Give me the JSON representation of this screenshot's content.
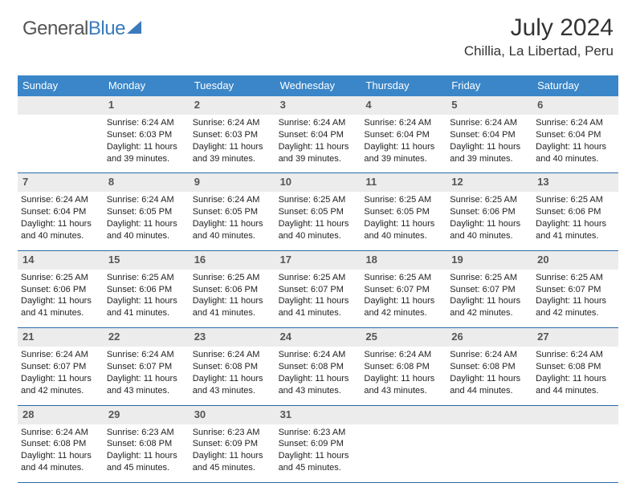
{
  "logo": {
    "part1": "General",
    "part2": "Blue"
  },
  "heading": {
    "title": "July 2024",
    "location": "Chillia, La Libertad, Peru"
  },
  "colors": {
    "header_bg": "#3a86c8",
    "header_text": "#ffffff",
    "daynum_bg": "#ececec",
    "week_border": "#2a6aa8",
    "logo_blue": "#3a7abd"
  },
  "weekday_labels": [
    "Sunday",
    "Monday",
    "Tuesday",
    "Wednesday",
    "Thursday",
    "Friday",
    "Saturday"
  ],
  "weeks": [
    {
      "daynums": [
        "",
        "1",
        "2",
        "3",
        "4",
        "5",
        "6"
      ],
      "cells": [
        {
          "sunrise": "",
          "sunset": "",
          "daylight": ""
        },
        {
          "sunrise": "Sunrise: 6:24 AM",
          "sunset": "Sunset: 6:03 PM",
          "daylight": "Daylight: 11 hours and 39 minutes."
        },
        {
          "sunrise": "Sunrise: 6:24 AM",
          "sunset": "Sunset: 6:03 PM",
          "daylight": "Daylight: 11 hours and 39 minutes."
        },
        {
          "sunrise": "Sunrise: 6:24 AM",
          "sunset": "Sunset: 6:04 PM",
          "daylight": "Daylight: 11 hours and 39 minutes."
        },
        {
          "sunrise": "Sunrise: 6:24 AM",
          "sunset": "Sunset: 6:04 PM",
          "daylight": "Daylight: 11 hours and 39 minutes."
        },
        {
          "sunrise": "Sunrise: 6:24 AM",
          "sunset": "Sunset: 6:04 PM",
          "daylight": "Daylight: 11 hours and 39 minutes."
        },
        {
          "sunrise": "Sunrise: 6:24 AM",
          "sunset": "Sunset: 6:04 PM",
          "daylight": "Daylight: 11 hours and 40 minutes."
        }
      ]
    },
    {
      "daynums": [
        "7",
        "8",
        "9",
        "10",
        "11",
        "12",
        "13"
      ],
      "cells": [
        {
          "sunrise": "Sunrise: 6:24 AM",
          "sunset": "Sunset: 6:04 PM",
          "daylight": "Daylight: 11 hours and 40 minutes."
        },
        {
          "sunrise": "Sunrise: 6:24 AM",
          "sunset": "Sunset: 6:05 PM",
          "daylight": "Daylight: 11 hours and 40 minutes."
        },
        {
          "sunrise": "Sunrise: 6:24 AM",
          "sunset": "Sunset: 6:05 PM",
          "daylight": "Daylight: 11 hours and 40 minutes."
        },
        {
          "sunrise": "Sunrise: 6:25 AM",
          "sunset": "Sunset: 6:05 PM",
          "daylight": "Daylight: 11 hours and 40 minutes."
        },
        {
          "sunrise": "Sunrise: 6:25 AM",
          "sunset": "Sunset: 6:05 PM",
          "daylight": "Daylight: 11 hours and 40 minutes."
        },
        {
          "sunrise": "Sunrise: 6:25 AM",
          "sunset": "Sunset: 6:06 PM",
          "daylight": "Daylight: 11 hours and 40 minutes."
        },
        {
          "sunrise": "Sunrise: 6:25 AM",
          "sunset": "Sunset: 6:06 PM",
          "daylight": "Daylight: 11 hours and 41 minutes."
        }
      ]
    },
    {
      "daynums": [
        "14",
        "15",
        "16",
        "17",
        "18",
        "19",
        "20"
      ],
      "cells": [
        {
          "sunrise": "Sunrise: 6:25 AM",
          "sunset": "Sunset: 6:06 PM",
          "daylight": "Daylight: 11 hours and 41 minutes."
        },
        {
          "sunrise": "Sunrise: 6:25 AM",
          "sunset": "Sunset: 6:06 PM",
          "daylight": "Daylight: 11 hours and 41 minutes."
        },
        {
          "sunrise": "Sunrise: 6:25 AM",
          "sunset": "Sunset: 6:06 PM",
          "daylight": "Daylight: 11 hours and 41 minutes."
        },
        {
          "sunrise": "Sunrise: 6:25 AM",
          "sunset": "Sunset: 6:07 PM",
          "daylight": "Daylight: 11 hours and 41 minutes."
        },
        {
          "sunrise": "Sunrise: 6:25 AM",
          "sunset": "Sunset: 6:07 PM",
          "daylight": "Daylight: 11 hours and 42 minutes."
        },
        {
          "sunrise": "Sunrise: 6:25 AM",
          "sunset": "Sunset: 6:07 PM",
          "daylight": "Daylight: 11 hours and 42 minutes."
        },
        {
          "sunrise": "Sunrise: 6:25 AM",
          "sunset": "Sunset: 6:07 PM",
          "daylight": "Daylight: 11 hours and 42 minutes."
        }
      ]
    },
    {
      "daynums": [
        "21",
        "22",
        "23",
        "24",
        "25",
        "26",
        "27"
      ],
      "cells": [
        {
          "sunrise": "Sunrise: 6:24 AM",
          "sunset": "Sunset: 6:07 PM",
          "daylight": "Daylight: 11 hours and 42 minutes."
        },
        {
          "sunrise": "Sunrise: 6:24 AM",
          "sunset": "Sunset: 6:07 PM",
          "daylight": "Daylight: 11 hours and 43 minutes."
        },
        {
          "sunrise": "Sunrise: 6:24 AM",
          "sunset": "Sunset: 6:08 PM",
          "daylight": "Daylight: 11 hours and 43 minutes."
        },
        {
          "sunrise": "Sunrise: 6:24 AM",
          "sunset": "Sunset: 6:08 PM",
          "daylight": "Daylight: 11 hours and 43 minutes."
        },
        {
          "sunrise": "Sunrise: 6:24 AM",
          "sunset": "Sunset: 6:08 PM",
          "daylight": "Daylight: 11 hours and 43 minutes."
        },
        {
          "sunrise": "Sunrise: 6:24 AM",
          "sunset": "Sunset: 6:08 PM",
          "daylight": "Daylight: 11 hours and 44 minutes."
        },
        {
          "sunrise": "Sunrise: 6:24 AM",
          "sunset": "Sunset: 6:08 PM",
          "daylight": "Daylight: 11 hours and 44 minutes."
        }
      ]
    },
    {
      "daynums": [
        "28",
        "29",
        "30",
        "31",
        "",
        "",
        ""
      ],
      "cells": [
        {
          "sunrise": "Sunrise: 6:24 AM",
          "sunset": "Sunset: 6:08 PM",
          "daylight": "Daylight: 11 hours and 44 minutes."
        },
        {
          "sunrise": "Sunrise: 6:23 AM",
          "sunset": "Sunset: 6:08 PM",
          "daylight": "Daylight: 11 hours and 45 minutes."
        },
        {
          "sunrise": "Sunrise: 6:23 AM",
          "sunset": "Sunset: 6:09 PM",
          "daylight": "Daylight: 11 hours and 45 minutes."
        },
        {
          "sunrise": "Sunrise: 6:23 AM",
          "sunset": "Sunset: 6:09 PM",
          "daylight": "Daylight: 11 hours and 45 minutes."
        },
        {
          "sunrise": "",
          "sunset": "",
          "daylight": ""
        },
        {
          "sunrise": "",
          "sunset": "",
          "daylight": ""
        },
        {
          "sunrise": "",
          "sunset": "",
          "daylight": ""
        }
      ]
    }
  ]
}
